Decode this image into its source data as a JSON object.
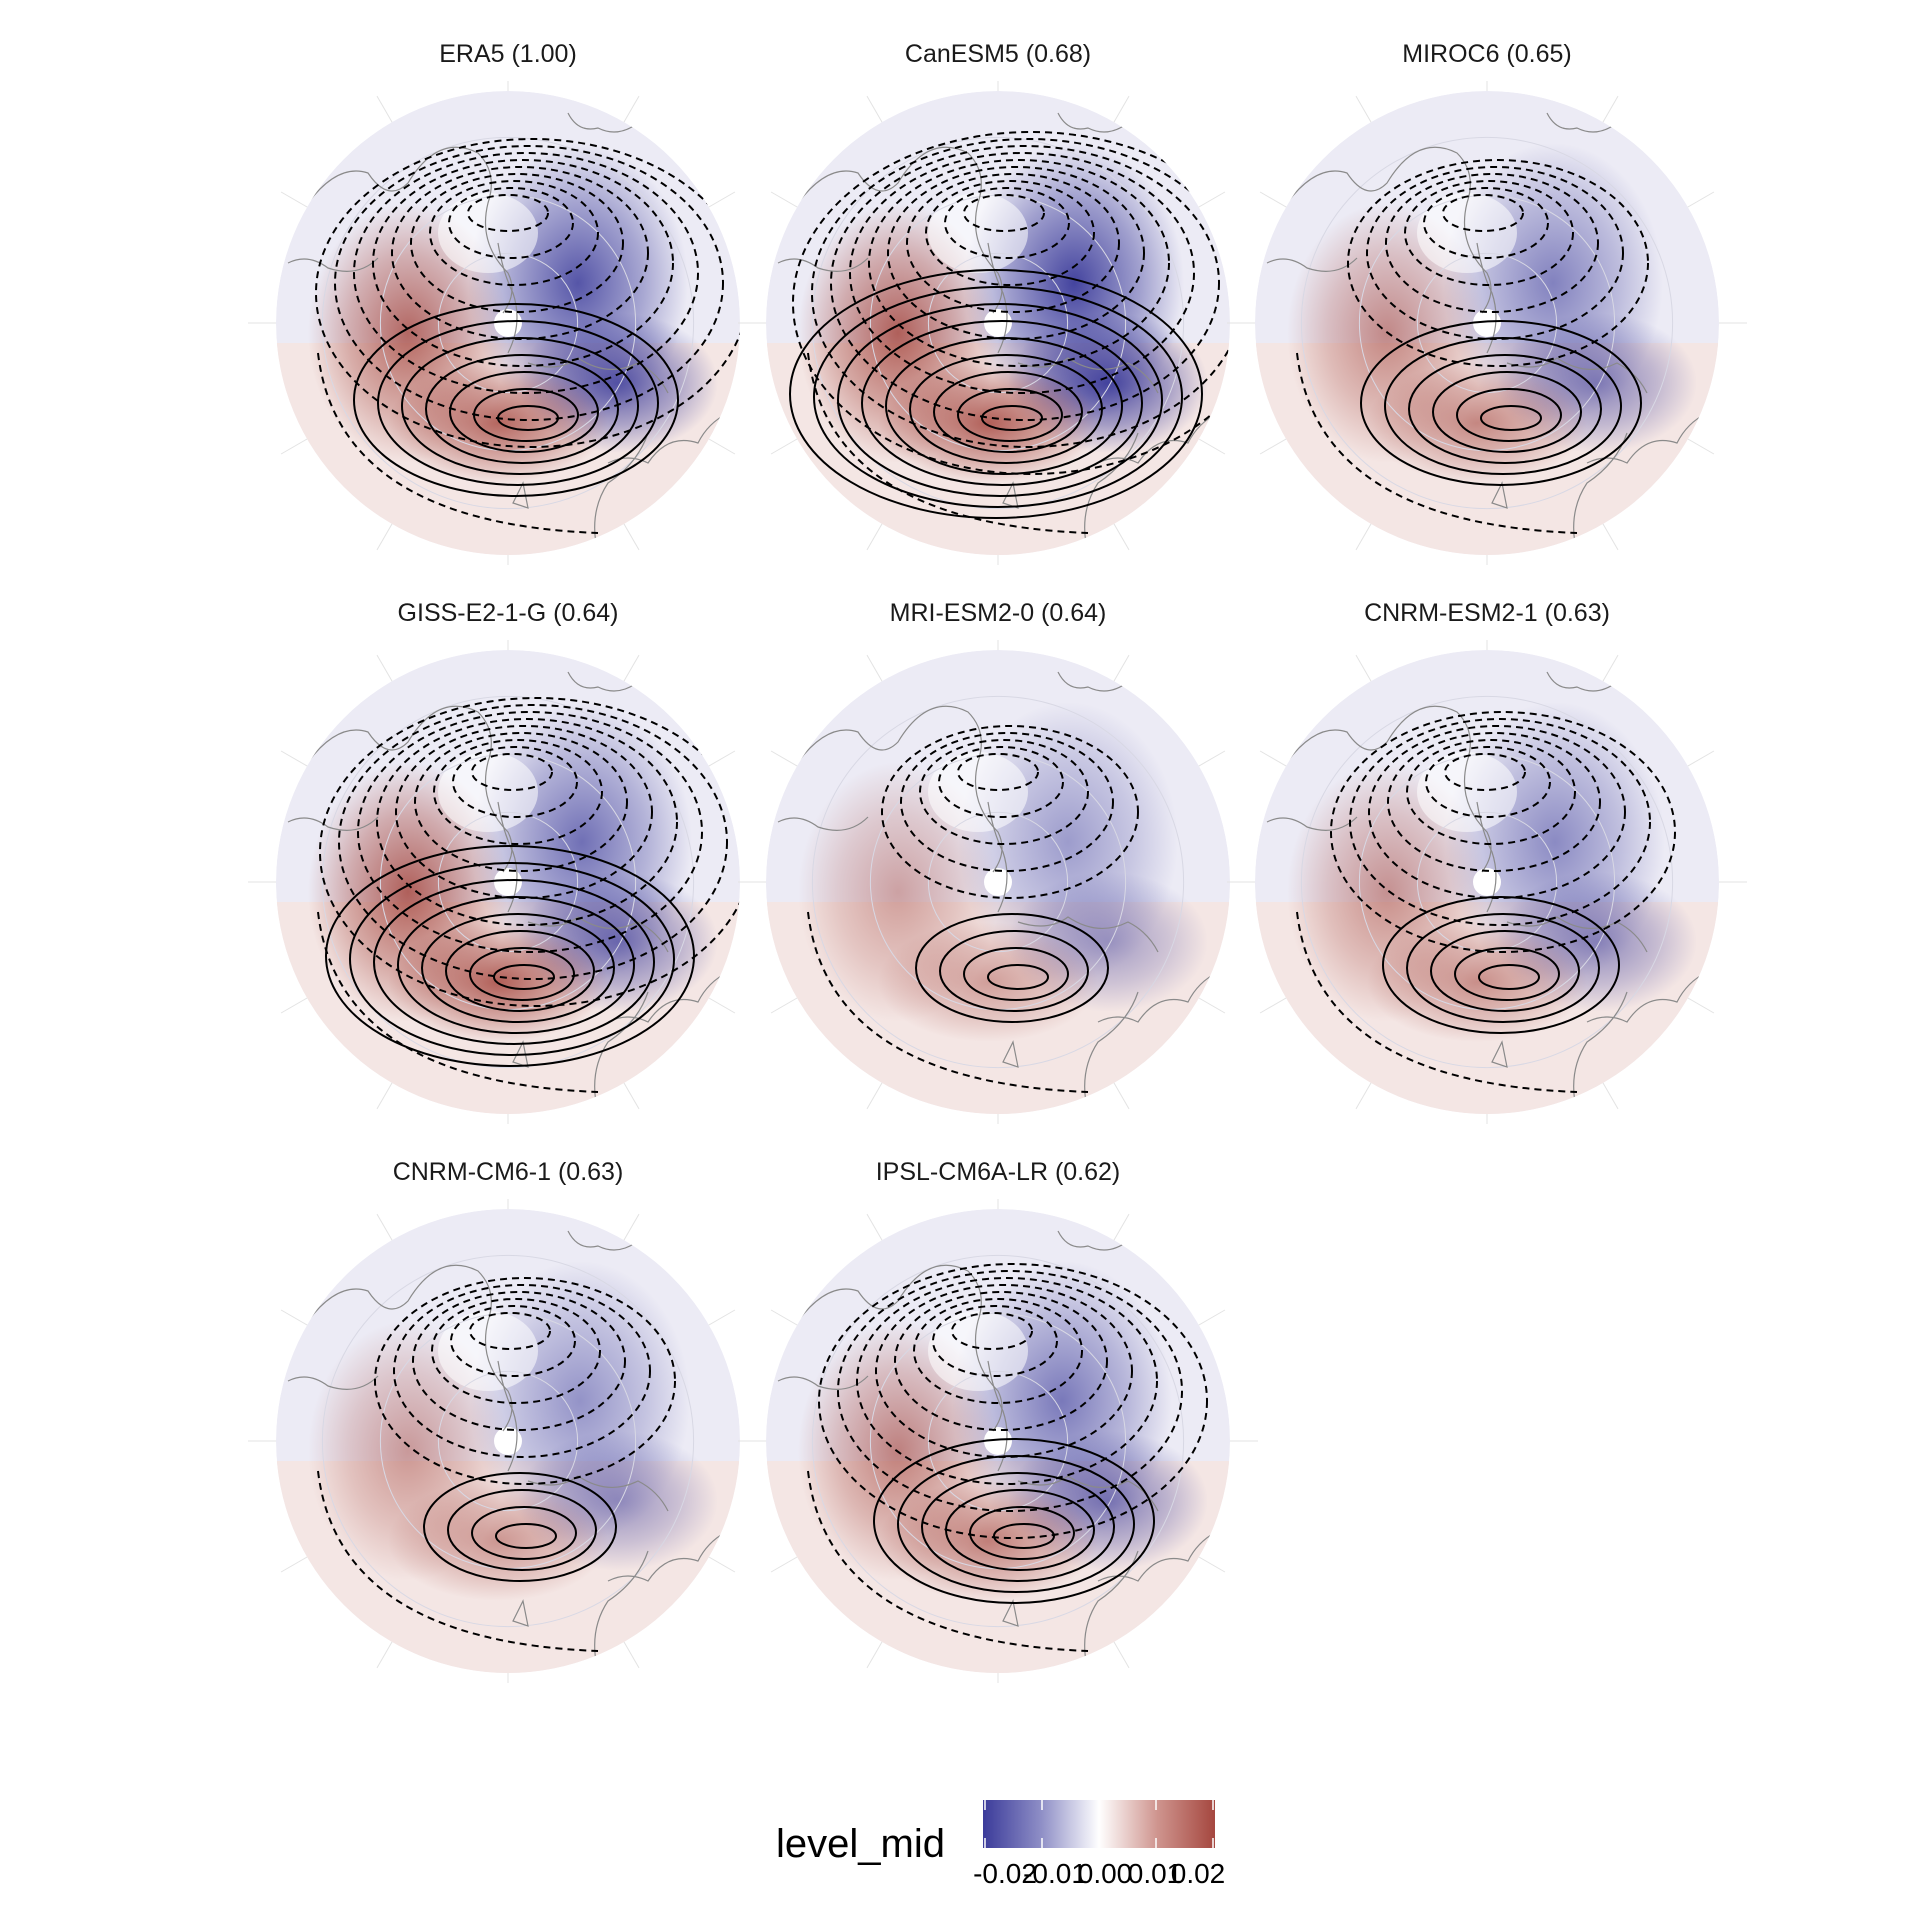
{
  "panels": [
    {
      "title": "ERA5 (1.00)"
    },
    {
      "title": "CanESM5 (0.68)"
    },
    {
      "title": "MIROC6 (0.65)"
    },
    {
      "title": "GISS-E2-1-G (0.64)"
    },
    {
      "title": "MRI-ESM2-0 (0.64)"
    },
    {
      "title": "CNRM-ESM2-1 (0.63)"
    },
    {
      "title": "CNRM-CM6-1 (0.63)"
    },
    {
      "title": "IPSL-CM6A-LR (0.62)"
    }
  ],
  "legend": {
    "title": "level_mid",
    "ticks": [
      "-0.02",
      "-0.01",
      "0.00",
      "0.01",
      "0.02"
    ],
    "colors": {
      "negative": "#3b3b9a",
      "zero": "#ffffff",
      "positive": "#a5473f"
    }
  }
}
